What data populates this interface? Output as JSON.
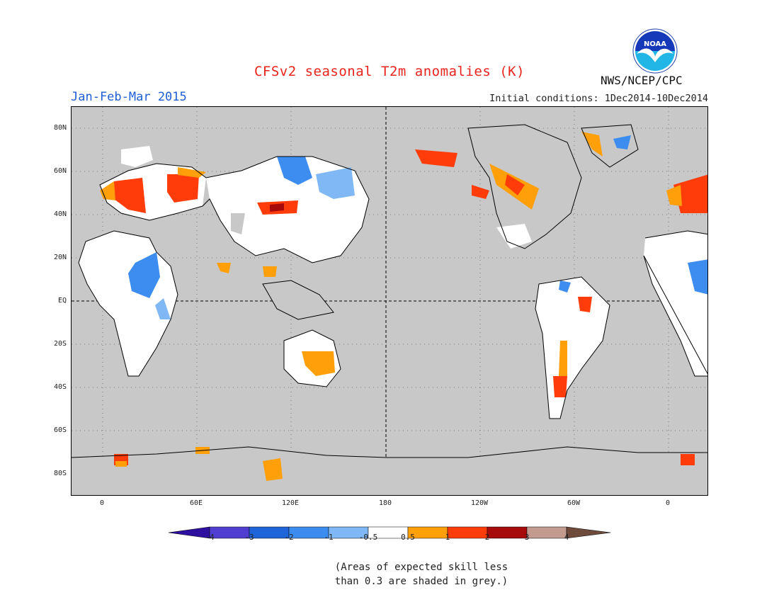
{
  "title": "CFSv2 seasonal T2m anomalies (K)",
  "season": "Jan-Feb-Mar 2015",
  "initial_conditions": "Initial conditions: 1Dec2014-10Dec2014",
  "agency": "NWS/NCEP/CPC",
  "logo_text": "NOAA",
  "map": {
    "background_color": "#c8c8c8",
    "y_axis_labels": [
      "80N",
      "60N",
      "40N",
      "20N",
      "EQ",
      "20S",
      "40S",
      "60S",
      "80S"
    ],
    "x_axis_labels": [
      "0",
      "60E",
      "120E",
      "180",
      "120W",
      "60W",
      "0"
    ],
    "dashed_reference_lines": [
      "EQ",
      "180"
    ]
  },
  "colorbar": {
    "colors": [
      "#2e10a0",
      "#4f3fd0",
      "#1f64d8",
      "#3d8cf0",
      "#7fb8f4",
      "#ffffff",
      "#ffa00a",
      "#ff3c0a",
      "#a60a0a",
      "#c39a8e",
      "#6f4b3c"
    ],
    "labels": [
      "-4",
      "-3",
      "-2",
      "-1",
      "-0.5",
      "0.5",
      "1",
      "2",
      "3",
      "4"
    ]
  },
  "note": {
    "line1": "(Areas of expected skill less",
    "line2": "than 0.3 are shaded in grey.)"
  }
}
